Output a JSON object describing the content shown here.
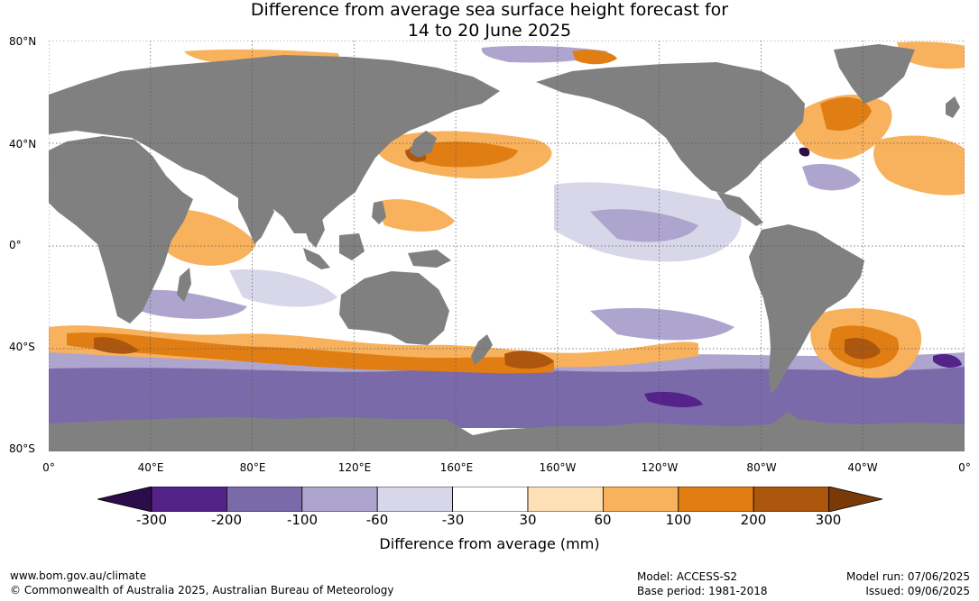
{
  "title": {
    "line1": "Difference from average sea surface height forecast for",
    "line2": "14 to 20 June 2025"
  },
  "latitude_labels": [
    "80°N",
    "40°N",
    "0°",
    "40°S",
    "80°S"
  ],
  "longitude_labels": [
    "0°",
    "40°E",
    "80°E",
    "120°E",
    "160°E",
    "160°W",
    "120°W",
    "80°W",
    "40°W",
    "0°"
  ],
  "colorbar": {
    "ticks": [
      "-300",
      "-200",
      "-100",
      "-60",
      "-30",
      "30",
      "60",
      "100",
      "200",
      "300"
    ],
    "label": "Difference from average (mm)",
    "colors": {
      "below_-300": "#2c0d4a",
      "-300_-200": "#54238a",
      "-200_-100": "#7b6aa9",
      "-100_-60": "#aea5cf",
      "-60_-30": "#d8d7ea",
      "-30_30": "#ffffff",
      "30_60": "#fde0b6",
      "60_100": "#f8b15c",
      "100_200": "#e07d13",
      "200_300": "#ad560e",
      "above_300": "#7a3a08"
    }
  },
  "map": {
    "land_color": "#808080",
    "ocean_neutral_color": "#ffffff",
    "gridlines": "dotted",
    "projection": "equirectangular, 0° to 360°, 80°S to 80°N"
  },
  "footer": {
    "url": "www.bom.gov.au/climate",
    "copyright": "© Commonwealth of Australia 2025, Australian Bureau of Meteorology",
    "model": "Model: ACCESS-S2",
    "base_period": "Base period: 1981-2018",
    "model_run": "Model run: 07/06/2025",
    "issued": "Issued: 09/06/2025"
  }
}
